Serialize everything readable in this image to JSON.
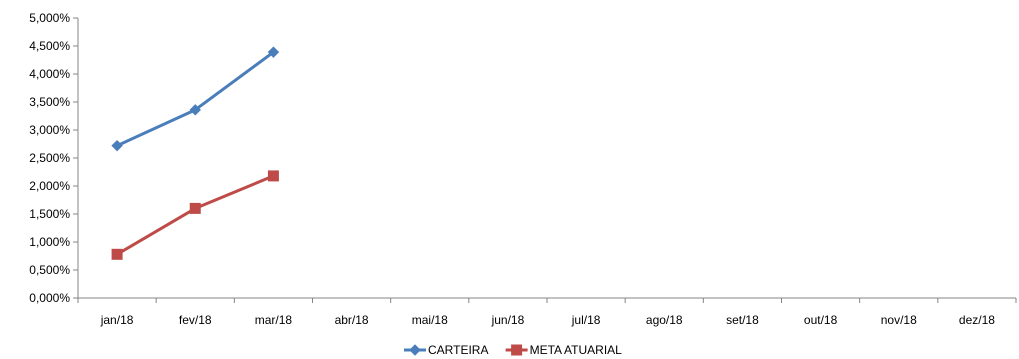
{
  "chart_data": {
    "type": "line",
    "title": "",
    "xlabel": "",
    "ylabel": "",
    "categories": [
      "jan/18",
      "fev/18",
      "mar/18",
      "abr/18",
      "mai/18",
      "jun/18",
      "jul/18",
      "ago/18",
      "set/18",
      "out/18",
      "nov/18",
      "dez/18"
    ],
    "y_ticks": [
      "0,000%",
      "0,500%",
      "1,000%",
      "1,500%",
      "2,000%",
      "2,500%",
      "3,000%",
      "3,500%",
      "4,000%",
      "4,500%",
      "5,000%"
    ],
    "ylim": [
      0,
      5
    ],
    "y_unit": "%",
    "grid": {
      "horizontal": false,
      "vertical": false
    },
    "legend_position": "bottom-center",
    "series": [
      {
        "name": "CARTEIRA",
        "color": "#4a7ebb",
        "marker": "diamond",
        "values": [
          2.72,
          3.36,
          4.39,
          null,
          null,
          null,
          null,
          null,
          null,
          null,
          null,
          null
        ]
      },
      {
        "name": "META ATUARIAL",
        "color": "#be4b48",
        "marker": "square",
        "values": [
          0.78,
          1.6,
          2.18,
          null,
          null,
          null,
          null,
          null,
          null,
          null,
          null,
          null
        ]
      }
    ]
  }
}
